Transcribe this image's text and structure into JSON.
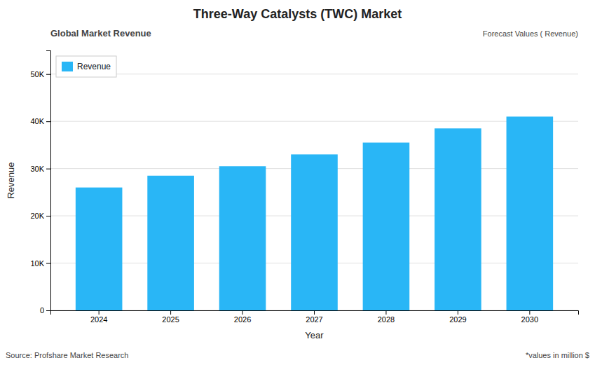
{
  "chart_data": {
    "type": "bar",
    "title": "Three-Way Catalysts (TWC) Market",
    "subtitle": "Global Market Revenue",
    "annotations": [
      "Forecast Values ( Revenue)",
      "Source: Profshare Market Research",
      "*values in million $"
    ],
    "x_label": "Year",
    "y_label": "Revenue",
    "categories": [
      "2024",
      "2025",
      "2026",
      "2027",
      "2028",
      "2029",
      "2030"
    ],
    "series": [
      {
        "name": "Revenue",
        "color": "#29b6f6",
        "values": [
          26000,
          28500,
          30500,
          33000,
          35500,
          38500,
          41000
        ]
      }
    ],
    "ylim": [
      0,
      55000
    ],
    "yticks": [
      0,
      {
        "value": 10000,
        "label": "10K"
      },
      {
        "value": 20000,
        "label": "20K"
      },
      {
        "value": 30000,
        "label": "30K"
      },
      {
        "value": 40000,
        "label": "40K"
      },
      {
        "value": 50000,
        "label": "50K"
      }
    ],
    "grid": true,
    "legend": "upper left"
  }
}
